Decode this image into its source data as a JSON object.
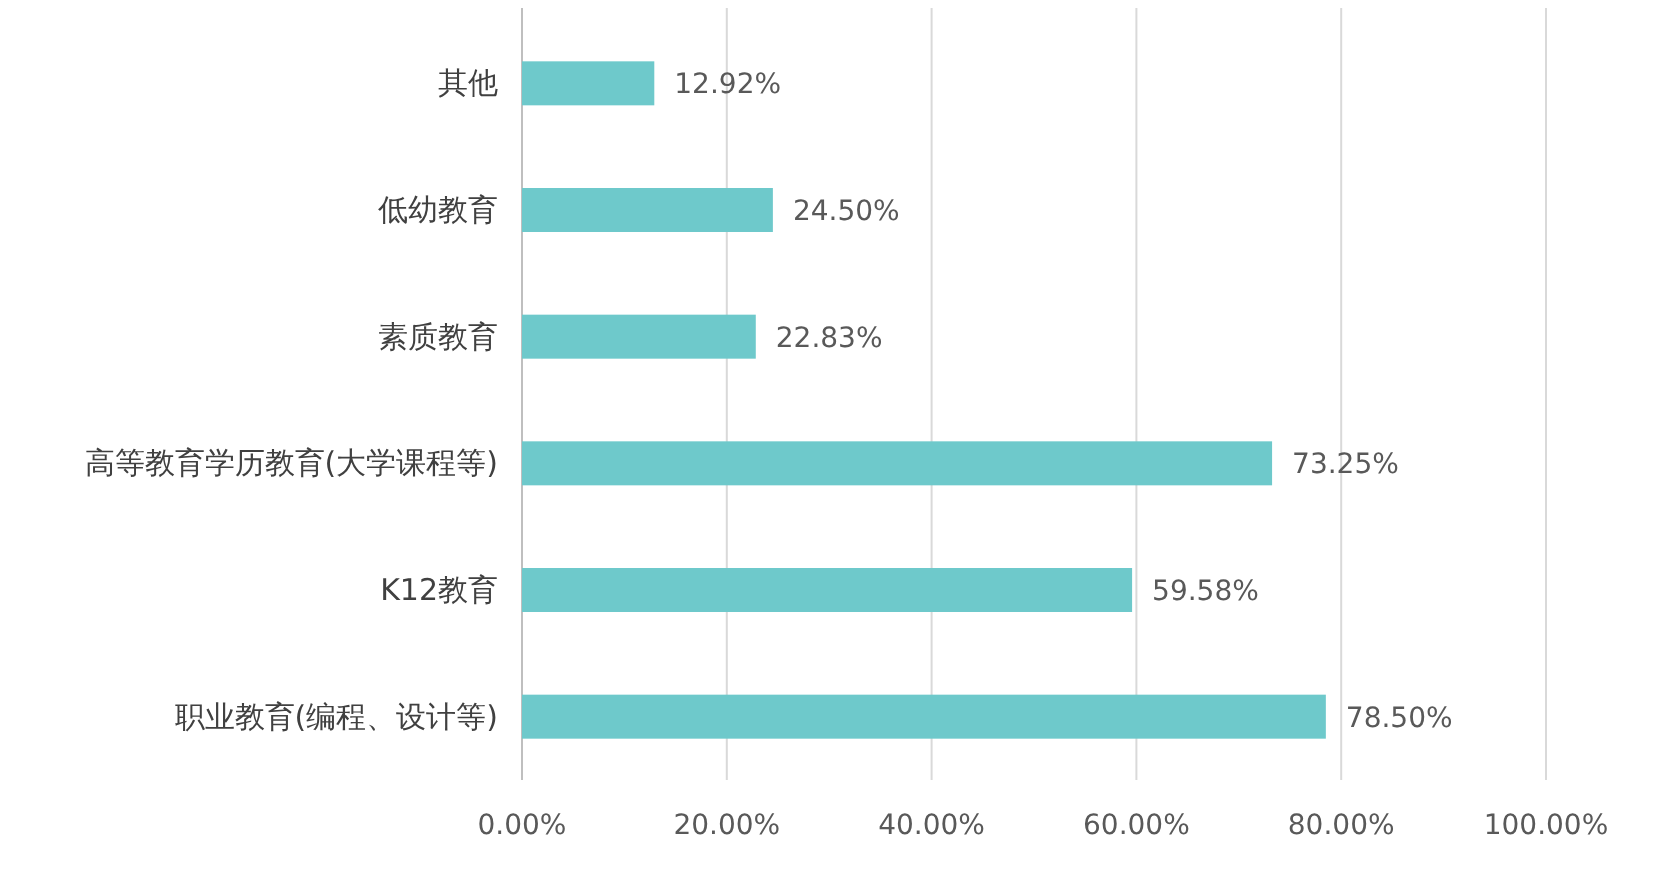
{
  "chart_data": {
    "type": "bar",
    "orientation": "horizontal",
    "categories": [
      "其他",
      "低幼教育",
      "素质教育",
      "高等教育学历教育(大学课程等)",
      "K12教育",
      "职业教育(编程、设计等)"
    ],
    "values": [
      12.92,
      24.5,
      22.83,
      73.25,
      59.58,
      78.5
    ],
    "value_labels": [
      "12.92%",
      "24.50%",
      "22.83%",
      "73.25%",
      "59.58%",
      "78.50%"
    ],
    "color": "#6ec9cb",
    "xlim": [
      0,
      100
    ],
    "xticks": [
      {
        "value": 0,
        "label": "0.00%"
      },
      {
        "value": 20,
        "label": "20.00%"
      },
      {
        "value": 40,
        "label": "40.00%"
      },
      {
        "value": 60,
        "label": "60.00%"
      },
      {
        "value": 80,
        "label": "80.00%"
      },
      {
        "value": 100,
        "label": "100.00%"
      }
    ],
    "grid": "x"
  }
}
